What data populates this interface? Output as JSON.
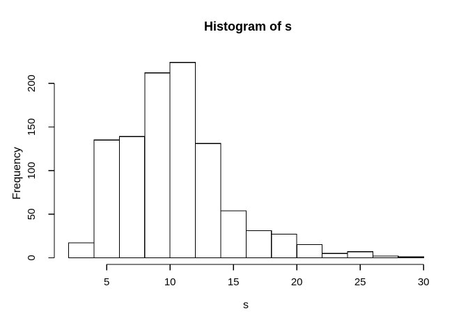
{
  "chart_data": {
    "type": "bar",
    "subtype": "histogram",
    "title": "Histogram of s",
    "xlabel": "s",
    "ylabel": "Frequency",
    "breaks": [
      2,
      4,
      6,
      8,
      10,
      12,
      14,
      16,
      18,
      20,
      22,
      24,
      26,
      28,
      30
    ],
    "counts": [
      17,
      135,
      139,
      212,
      224,
      131,
      54,
      31,
      27,
      15,
      5,
      7,
      2,
      1
    ],
    "x_ticks": [
      5,
      10,
      15,
      20,
      25,
      30
    ],
    "y_ticks": [
      0,
      50,
      100,
      150,
      200
    ],
    "x_range": [
      2,
      30
    ],
    "y_range": [
      0,
      224
    ],
    "grid": false,
    "legend": "none",
    "bar_fill": "#ffffff",
    "bar_stroke": "#000000",
    "axis_color": "#000000",
    "background": "#ffffff"
  }
}
